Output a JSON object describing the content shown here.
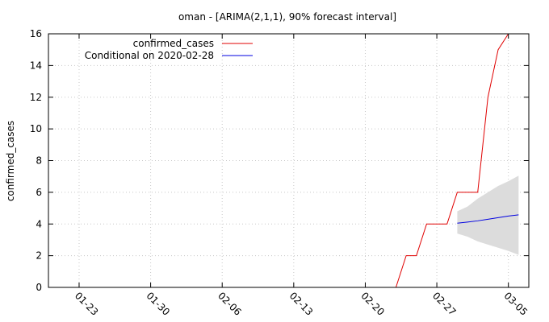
{
  "chart_data": {
    "type": "line",
    "title": "oman -  [ARIMA(2,1,1), 90% forecast interval]",
    "xlabel": "",
    "ylabel": "confirmed_cases",
    "xlim": [
      "2020-01-20",
      "2020-03-07"
    ],
    "ylim": [
      0,
      16
    ],
    "yticks": [
      0,
      2,
      4,
      6,
      8,
      10,
      12,
      14,
      16
    ],
    "xticks": [
      {
        "date": "2020-01-23",
        "label": "01-23"
      },
      {
        "date": "2020-01-30",
        "label": "01-30"
      },
      {
        "date": "2020-02-06",
        "label": "02-06"
      },
      {
        "date": "2020-02-13",
        "label": "02-13"
      },
      {
        "date": "2020-02-20",
        "label": "02-20"
      },
      {
        "date": "2020-02-27",
        "label": "02-27"
      },
      {
        "date": "2020-03-05",
        "label": "03-05"
      }
    ],
    "grid": true,
    "legend_position": "top-left",
    "series": [
      {
        "name": "confirmed_cases",
        "color": "#e00000",
        "points": [
          {
            "x": "2020-02-23",
            "y": 0
          },
          {
            "x": "2020-02-24",
            "y": 2
          },
          {
            "x": "2020-02-25",
            "y": 2
          },
          {
            "x": "2020-02-26",
            "y": 4
          },
          {
            "x": "2020-02-27",
            "y": 4
          },
          {
            "x": "2020-02-28",
            "y": 4
          },
          {
            "x": "2020-02-29",
            "y": 6
          },
          {
            "x": "2020-03-01",
            "y": 6
          },
          {
            "x": "2020-03-02",
            "y": 6
          },
          {
            "x": "2020-03-03",
            "y": 12
          },
          {
            "x": "2020-03-04",
            "y": 15
          },
          {
            "x": "2020-03-05",
            "y": 16
          }
        ]
      },
      {
        "name": "Conditional on 2020-02-28",
        "color": "#0000e0",
        "points": [
          {
            "x": "2020-02-29",
            "y": 4.05
          },
          {
            "x": "2020-03-01",
            "y": 4.12
          },
          {
            "x": "2020-03-02",
            "y": 4.2
          },
          {
            "x": "2020-03-03",
            "y": 4.3
          },
          {
            "x": "2020-03-04",
            "y": 4.4
          },
          {
            "x": "2020-03-05",
            "y": 4.5
          },
          {
            "x": "2020-03-06",
            "y": 4.58
          }
        ]
      }
    ],
    "interval": {
      "label": "90% forecast interval",
      "color": "#dcdcdc",
      "lower": [
        {
          "x": "2020-02-29",
          "y": 3.4
        },
        {
          "x": "2020-03-01",
          "y": 3.2
        },
        {
          "x": "2020-03-02",
          "y": 2.9
        },
        {
          "x": "2020-03-03",
          "y": 2.7
        },
        {
          "x": "2020-03-04",
          "y": 2.5
        },
        {
          "x": "2020-03-05",
          "y": 2.3
        },
        {
          "x": "2020-03-06",
          "y": 2.05
        }
      ],
      "upper": [
        {
          "x": "2020-02-29",
          "y": 4.8
        },
        {
          "x": "2020-03-01",
          "y": 5.1
        },
        {
          "x": "2020-03-02",
          "y": 5.6
        },
        {
          "x": "2020-03-03",
          "y": 6.0
        },
        {
          "x": "2020-03-04",
          "y": 6.4
        },
        {
          "x": "2020-03-05",
          "y": 6.7
        },
        {
          "x": "2020-03-06",
          "y": 7.05
        }
      ]
    }
  }
}
